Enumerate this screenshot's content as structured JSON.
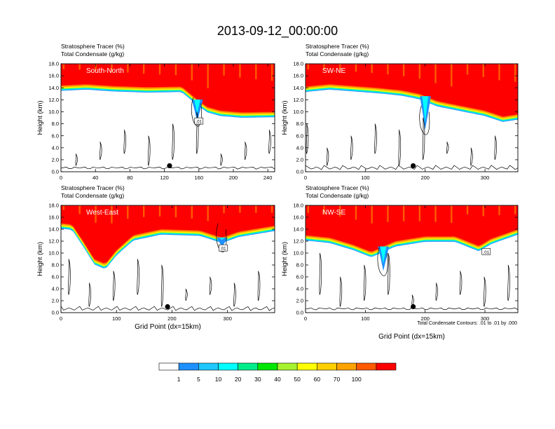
{
  "title": "2013-09-12_00:00:00",
  "footnote": "Total Condensate Contours: .01 to .01 by .000",
  "colors": {
    "levels": [
      "#ffffff",
      "#1e90ff",
      "#1ec8ff",
      "#00ffff",
      "#00ee8a",
      "#00e800",
      "#a6f22e",
      "#ffff00",
      "#ffd000",
      "#ffa300",
      "#ff5a00",
      "#ff0000"
    ],
    "contour": "#000000",
    "marker": "#000000"
  },
  "colorbar": {
    "labels": [
      "1",
      "5",
      "10",
      "20",
      "30",
      "40",
      "50",
      "60",
      "70",
      "100"
    ]
  },
  "chart_data": [
    {
      "type": "heatmap",
      "panel": "South-North",
      "label_line1": "Stratosphere Tracer   (%)",
      "label_line2": "Total Condensate   (g/kg)",
      "xlabel": "",
      "ylabel": "Height (km)",
      "xlim": [
        0,
        248
      ],
      "ylim": [
        0,
        18
      ],
      "xticks": [
        "0",
        "40",
        "80",
        "120",
        "160",
        "200",
        "240"
      ],
      "xtick_values": [
        0,
        40,
        80,
        120,
        160,
        200,
        240
      ],
      "yticks": [
        "0.0",
        "2.0",
        "4.0",
        "6.0",
        "8.0",
        "10.0",
        "12.0",
        "14.0",
        "16.0",
        "18.0"
      ],
      "tropopause_km": [
        [
          0,
          14.4
        ],
        [
          30,
          14.6
        ],
        [
          60,
          14.3
        ],
        [
          100,
          14.1
        ],
        [
          140,
          14.2
        ],
        [
          150,
          13.0
        ],
        [
          160,
          11.8
        ],
        [
          170,
          10.8
        ],
        [
          185,
          10.2
        ],
        [
          210,
          9.9
        ],
        [
          248,
          10.0
        ]
      ],
      "intrusion": [
        158,
        8.4
      ],
      "contour_label": ".01",
      "contour_label_pos": [
        160,
        8.4
      ],
      "marker": [
        126,
        1.0
      ]
    },
    {
      "type": "heatmap",
      "panel": "SW-NE",
      "label_line1": "Stratosphere Tracer   (%)",
      "label_line2": "Total Condensate   (g/kg)",
      "xlabel": "",
      "ylabel": "Height (km)",
      "xlim": [
        0,
        355
      ],
      "ylim": [
        0,
        18
      ],
      "xticks": [
        "0",
        "100",
        "200",
        "300"
      ],
      "xtick_values": [
        0,
        100,
        200,
        300
      ],
      "yticks": [
        "0.0",
        "2.0",
        "4.0",
        "6.0",
        "8.0",
        "10.0",
        "12.0",
        "14.0",
        "16.0",
        "18.0"
      ],
      "tropopause_km": [
        [
          0,
          14.2
        ],
        [
          40,
          14.6
        ],
        [
          80,
          14.3
        ],
        [
          120,
          14.0
        ],
        [
          160,
          13.6
        ],
        [
          190,
          13.0
        ],
        [
          220,
          11.8
        ],
        [
          260,
          11.0
        ],
        [
          300,
          10.2
        ],
        [
          330,
          9.2
        ],
        [
          355,
          9.6
        ]
      ],
      "intrusion": [
        200,
        7.0
      ],
      "contour_label": "",
      "contour_label_pos": [
        0,
        0
      ],
      "marker": [
        180,
        1.0
      ]
    },
    {
      "type": "heatmap",
      "panel": "West-East",
      "label_line1": "Stratosphere Tracer   (%)",
      "label_line2": "Total Condensate   (g/kg)",
      "xlabel": "Grid Point (dx=15km)",
      "ylabel": "Height (km)",
      "xlim": [
        0,
        385
      ],
      "ylim": [
        0,
        18
      ],
      "xticks": [
        "0",
        "100",
        "200",
        "300"
      ],
      "xtick_values": [
        0,
        100,
        200,
        300
      ],
      "yticks": [
        "0.0",
        "2.0",
        "4.0",
        "6.0",
        "8.0",
        "10.0",
        "12.0",
        "14.0",
        "16.0",
        "18.0"
      ],
      "tropopause_km": [
        [
          0,
          15.0
        ],
        [
          20,
          14.8
        ],
        [
          40,
          12.0
        ],
        [
          60,
          9.0
        ],
        [
          80,
          8.2
        ],
        [
          100,
          10.5
        ],
        [
          130,
          13.0
        ],
        [
          180,
          14.0
        ],
        [
          250,
          13.8
        ],
        [
          290,
          12.6
        ],
        [
          320,
          13.6
        ],
        [
          385,
          14.6
        ]
      ],
      "intrusion": [
        290,
        11.0
      ],
      "contour_label": ".01",
      "contour_label_pos": [
        292,
        10.8
      ],
      "marker": [
        192,
        1.0
      ]
    },
    {
      "type": "heatmap",
      "panel": "NW-SE",
      "label_line1": "Stratosphere Tracer   (%)",
      "label_line2": "Total Condensate   (g/kg)",
      "xlabel": "Grid Point (dx=15km)",
      "ylabel": "Height (km)",
      "xlim": [
        0,
        355
      ],
      "ylim": [
        0,
        18
      ],
      "xticks": [
        "0",
        "100",
        "200",
        "300"
      ],
      "xtick_values": [
        0,
        100,
        200,
        300
      ],
      "yticks": [
        "0.0",
        "2.0",
        "4.0",
        "6.0",
        "8.0",
        "10.0",
        "12.0",
        "14.0",
        "16.0",
        "18.0"
      ],
      "tropopause_km": [
        [
          0,
          13.0
        ],
        [
          40,
          12.6
        ],
        [
          80,
          11.4
        ],
        [
          110,
          10.2
        ],
        [
          150,
          12.0
        ],
        [
          200,
          12.8
        ],
        [
          250,
          12.8
        ],
        [
          290,
          11.2
        ],
        [
          310,
          12.4
        ],
        [
          355,
          14.0
        ]
      ],
      "intrusion": [
        130,
        7.0
      ],
      "contour_label": ".01",
      "contour_label_pos": [
        302,
        10.2
      ],
      "marker": [
        180,
        1.0
      ]
    }
  ]
}
